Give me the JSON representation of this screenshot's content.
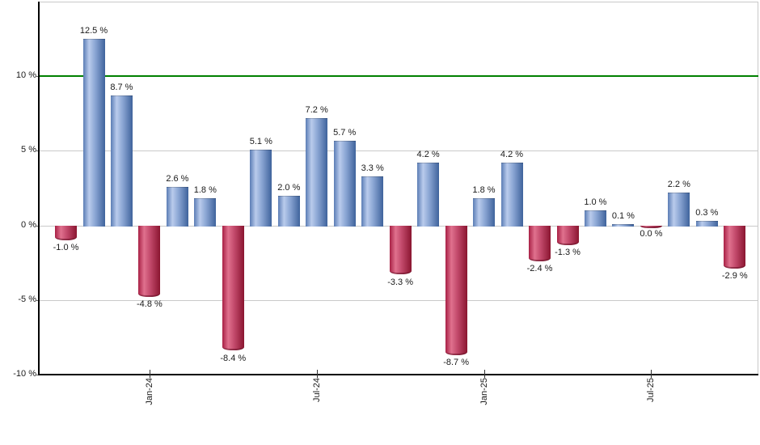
{
  "chart_data": {
    "type": "bar",
    "title": "",
    "unit": "%",
    "bars": [
      {
        "label": "-1.0 %",
        "value": -1.0,
        "color": "negative"
      },
      {
        "label": "12.5 %",
        "value": 12.5,
        "color": "positive"
      },
      {
        "label": "8.7 %",
        "value": 8.7,
        "color": "positive"
      },
      {
        "label": "-4.8 %",
        "value": -4.8,
        "color": "negative"
      },
      {
        "label": "2.6 %",
        "value": 2.6,
        "color": "positive"
      },
      {
        "label": "1.8 %",
        "value": 1.8,
        "color": "positive"
      },
      {
        "label": "-8.4 %",
        "value": -8.4,
        "color": "negative"
      },
      {
        "label": "5.1 %",
        "value": 5.1,
        "color": "positive"
      },
      {
        "label": "2.0 %",
        "value": 2.0,
        "color": "positive"
      },
      {
        "label": "7.2 %",
        "value": 7.2,
        "color": "positive"
      },
      {
        "label": "5.7 %",
        "value": 5.7,
        "color": "positive"
      },
      {
        "label": "3.3 %",
        "value": 3.3,
        "color": "positive"
      },
      {
        "label": "-3.3 %",
        "value": -3.3,
        "color": "negative"
      },
      {
        "label": "4.2 %",
        "value": 4.2,
        "color": "positive"
      },
      {
        "label": "-8.7 %",
        "value": -8.7,
        "color": "negative"
      },
      {
        "label": "1.8 %",
        "value": 1.8,
        "color": "positive"
      },
      {
        "label": "4.2 %",
        "value": 4.2,
        "color": "positive"
      },
      {
        "label": "-2.4 %",
        "value": -2.4,
        "color": "negative"
      },
      {
        "label": "-1.3 %",
        "value": -1.3,
        "color": "negative"
      },
      {
        "label": "1.0 %",
        "value": 1.0,
        "color": "positive"
      },
      {
        "label": "0.1 %",
        "value": 0.1,
        "color": "positive"
      },
      {
        "label": "0.0 %",
        "value": 0.0,
        "color": "negative"
      },
      {
        "label": "2.2 %",
        "value": 2.2,
        "color": "positive"
      },
      {
        "label": "0.3 %",
        "value": 0.3,
        "color": "positive"
      },
      {
        "label": "-2.9 %",
        "value": -2.9,
        "color": "negative"
      }
    ],
    "x_axis": {
      "tick_labels": [
        "Jan-24",
        "Jul-24",
        "Jan-25",
        "Jul-25"
      ],
      "tick_bar_indices": [
        3,
        9,
        15,
        21
      ]
    },
    "y_axis": {
      "tick_labels": [
        "10 %",
        "5 %",
        "0 %",
        "-5 %",
        "-10 %"
      ],
      "tick_values": [
        10,
        5,
        0,
        -5,
        -10
      ],
      "range": [
        -10,
        15
      ],
      "gridlines": [
        5,
        0,
        -5
      ]
    },
    "reference_line": {
      "value": 10,
      "color": "#008000"
    },
    "palette": {
      "positive_dark": "#3f639c",
      "positive_light": "#b9cbec",
      "negative_dark": "#8a1530",
      "negative_light": "#e0718e",
      "gridline": "#c9c9c9",
      "axis": "#000000",
      "label_text": "#1a1a1a"
    },
    "legend_position": "none",
    "grid": true
  }
}
